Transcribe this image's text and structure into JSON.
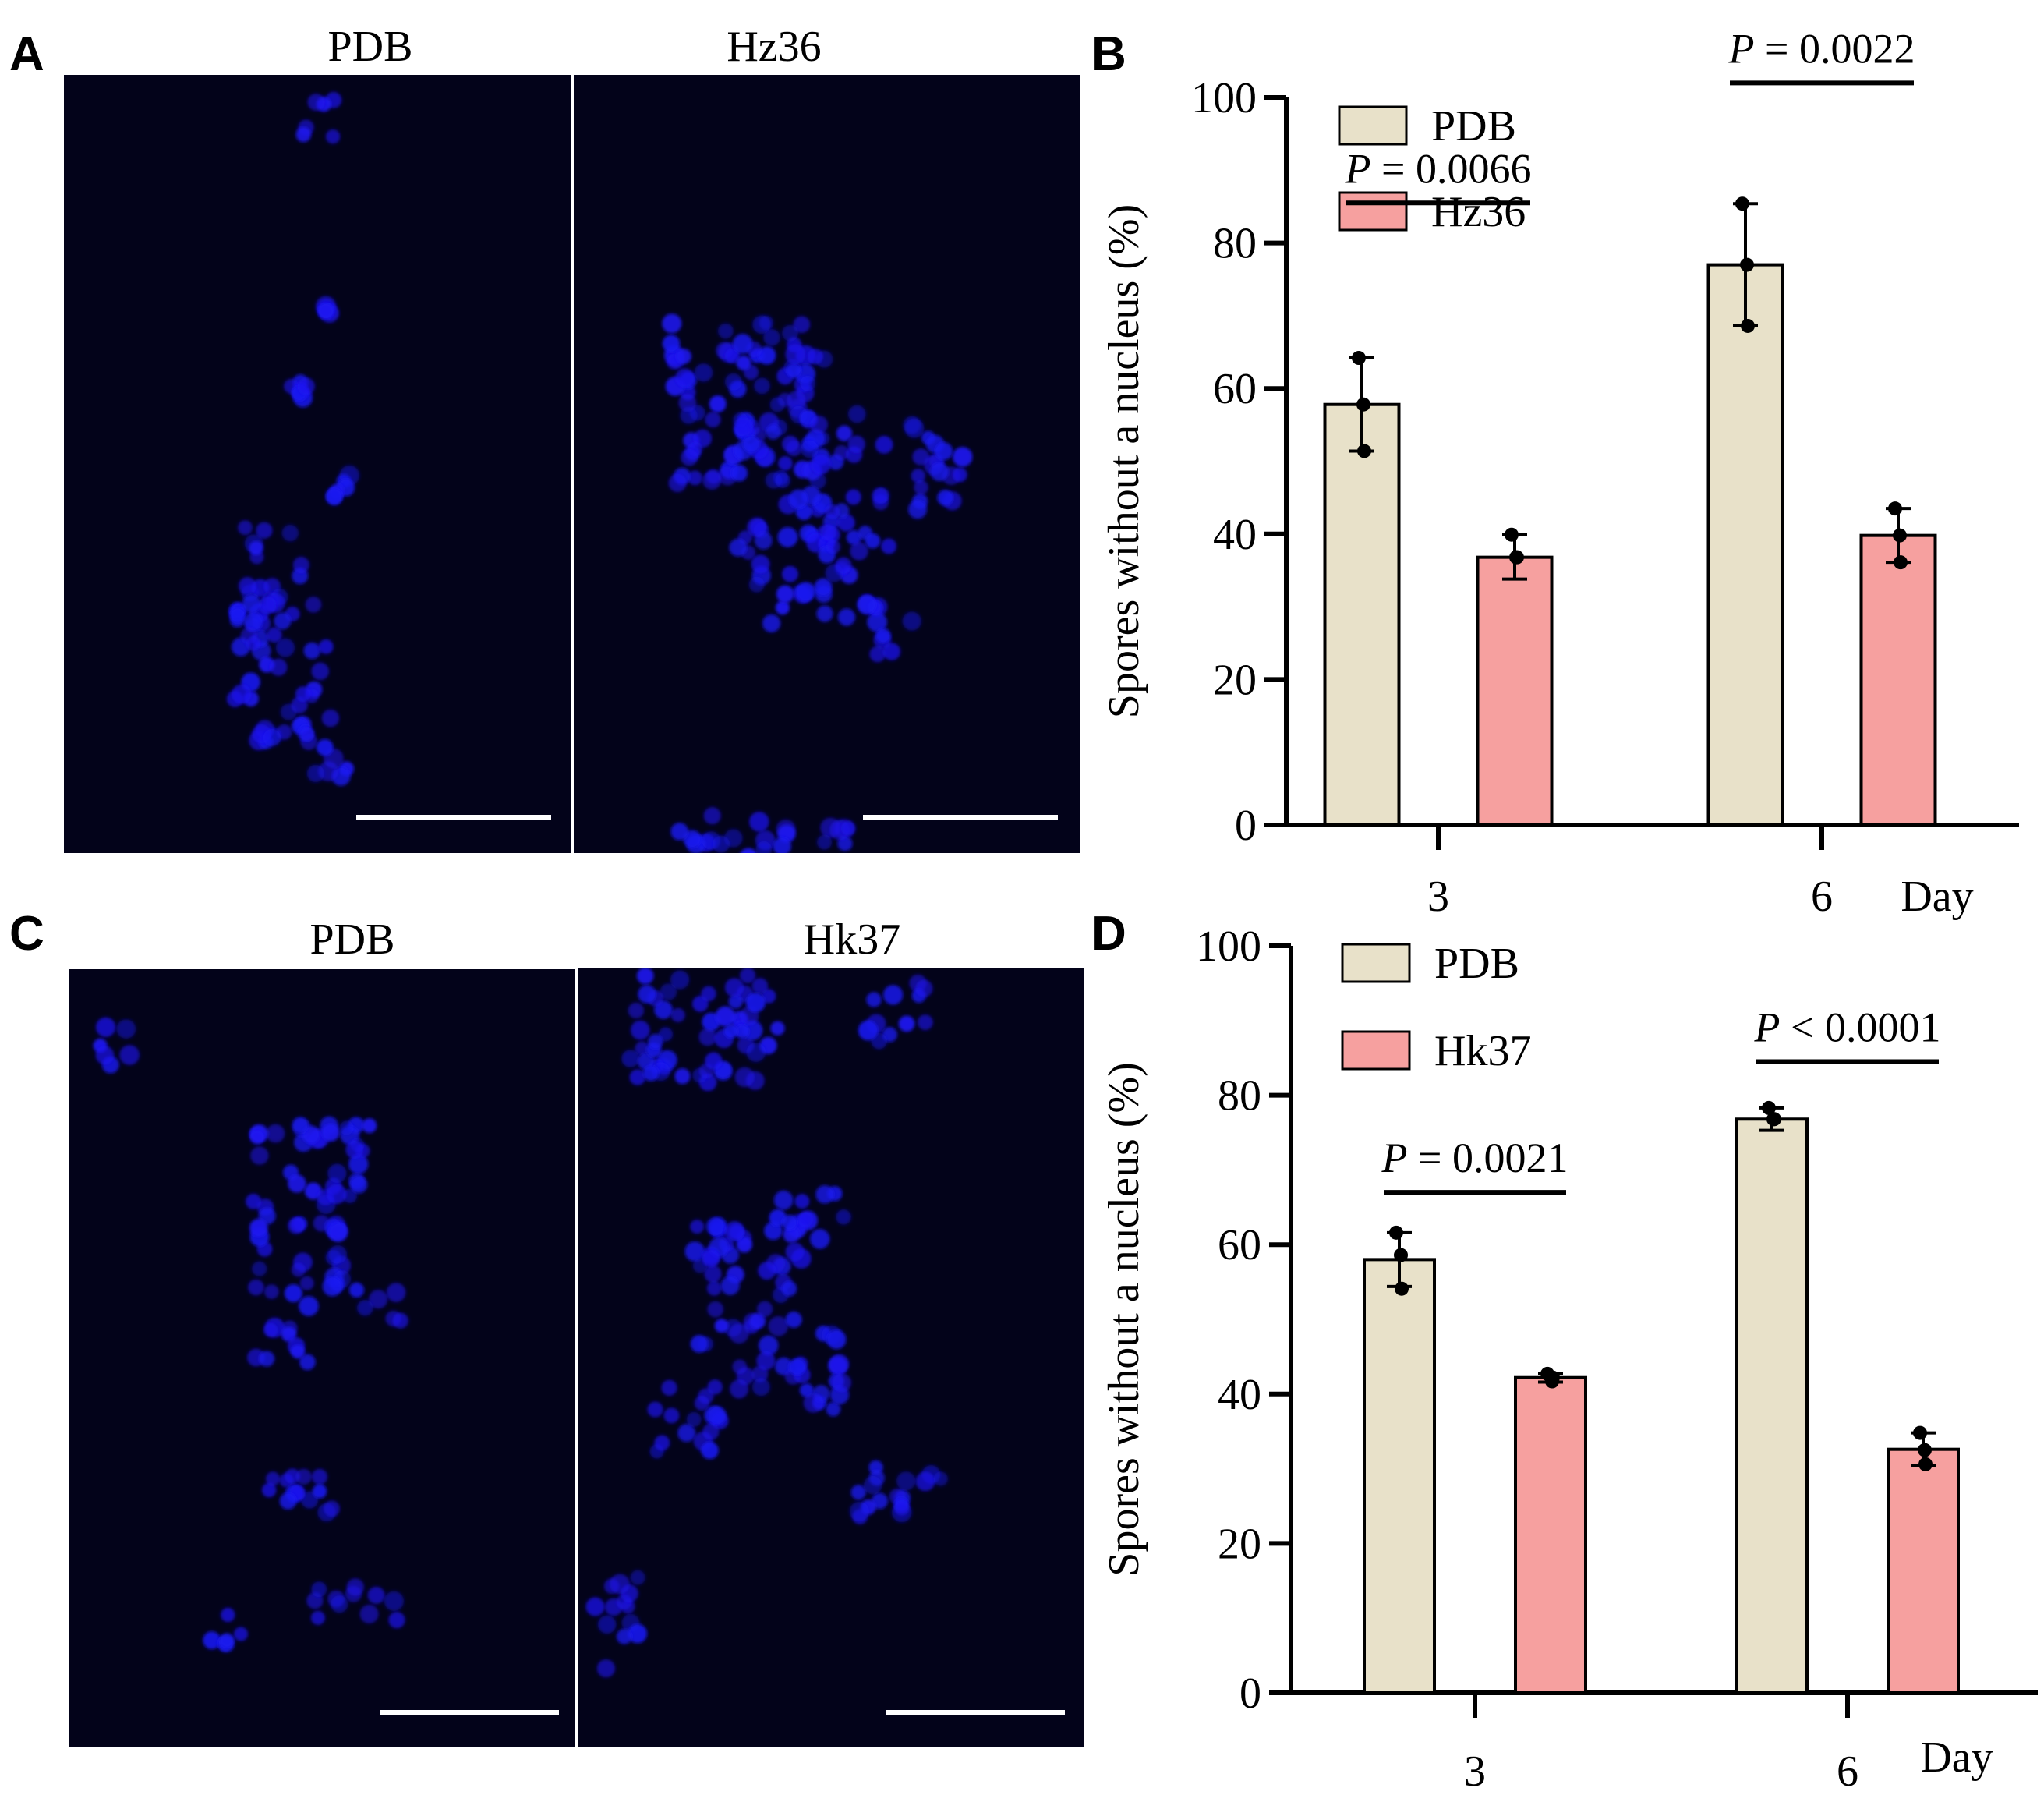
{
  "panels": {
    "A": {
      "letter": "A",
      "left_title": "PDB",
      "right_title": "Hz36"
    },
    "B": {
      "letter": "B"
    },
    "C": {
      "letter": "C",
      "left_title": "PDB",
      "right_title": "Hk37"
    },
    "D": {
      "letter": "D"
    }
  },
  "colors": {
    "pdb_bar": "#e8e1c9",
    "treated_bar": "#f6a09f",
    "micrograph_bg": "#03031a",
    "spore": "#1b16f0",
    "scale_bar": "#ffffff"
  },
  "chart_data": [
    {
      "panel": "B",
      "type": "bar",
      "ylabel": "Spores without a nucleus (%)",
      "xlabel": "Day",
      "categories": [
        "3",
        "6"
      ],
      "ylim": [
        0,
        100
      ],
      "yticks": [
        0,
        20,
        40,
        60,
        80,
        100
      ],
      "legend_position": "top-left",
      "series": [
        {
          "name": "PDB",
          "values": [
            57.8,
            77
          ],
          "error_high": [
            64.2,
            85.4
          ],
          "error_low": [
            51.4,
            68.6
          ],
          "points": [
            [
              64.2,
              57.8,
              51.4
            ],
            [
              85.4,
              77,
              68.6
            ]
          ]
        },
        {
          "name": "Hz36",
          "values": [
            36.8,
            39.8
          ],
          "error_high": [
            39.9,
            43.5
          ],
          "error_low": [
            33.8,
            36.1
          ],
          "points": [
            [
              39.9,
              36.8,
              36.8
            ],
            [
              43.5,
              39.8,
              36.1
            ]
          ]
        }
      ],
      "annotations": [
        {
          "p_italic": "P",
          "text": " = 0.0066",
          "category": 0,
          "y": 85.5
        },
        {
          "p_italic": "P",
          "text": " = 0.0022",
          "category": 1,
          "y": 102
        }
      ]
    },
    {
      "panel": "D",
      "type": "bar",
      "ylabel": "Spores without a nucleus (%)",
      "xlabel": "Day",
      "categories": [
        "3",
        "6"
      ],
      "ylim": [
        0,
        100
      ],
      "yticks": [
        0,
        20,
        40,
        60,
        80,
        100
      ],
      "legend_position": "top-left",
      "series": [
        {
          "name": "PDB",
          "values": [
            58,
            76.8
          ],
          "error_high": [
            61.6,
            78.3
          ],
          "error_low": [
            54.4,
            75.3
          ],
          "points": [
            [
              61.6,
              58.6,
              54.1
            ],
            [
              78.3,
              76.8,
              76.8
            ]
          ]
        },
        {
          "name": "Hk37",
          "values": [
            42.2,
            32.6
          ],
          "error_high": [
            42.8,
            34.8
          ],
          "error_low": [
            41.6,
            30.4
          ],
          "points": [
            [
              42.7,
              41.7,
              42.2
            ],
            [
              34.8,
              32.5,
              30.6
            ]
          ]
        }
      ],
      "annotations": [
        {
          "p_italic": "P",
          "text": " = 0.0021",
          "category": 0,
          "y": 67
        },
        {
          "p_italic": "P",
          "text": " < 0.0001",
          "category": 1,
          "y": 84.5
        }
      ]
    }
  ]
}
